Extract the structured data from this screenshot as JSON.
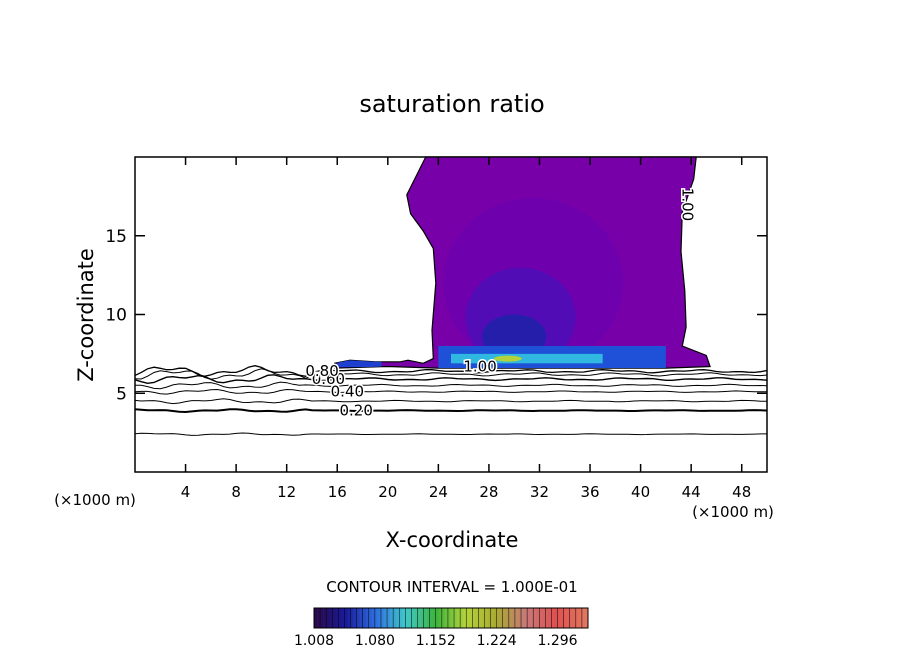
{
  "chart_data": {
    "type": "heatmap",
    "title": "saturation ratio",
    "xlabel": "X-coordinate",
    "ylabel": "Z-coordinate",
    "x_unit": "(×1000 m)",
    "xlim": [
      0,
      50
    ],
    "ylim": [
      0,
      20
    ],
    "x_ticks": [
      4,
      8,
      12,
      16,
      20,
      24,
      28,
      32,
      36,
      40,
      44,
      48
    ],
    "y_ticks": [
      5,
      10,
      15
    ],
    "contour_interval_label": "CONTOUR INTERVAL = 1.000E-01",
    "contour_labels": [
      {
        "text": "0.20",
        "x": 17.5,
        "z": 3.9
      },
      {
        "text": "0.40",
        "x": 16.8,
        "z": 5.1
      },
      {
        "text": "0.60",
        "x": 15.3,
        "z": 5.9
      },
      {
        "text": "0.80",
        "x": 14.8,
        "z": 6.4
      },
      {
        "text": "1.00",
        "x": 27.3,
        "z": 6.7
      },
      {
        "text": "1.00",
        "x": 43.3,
        "z": 17.3
      }
    ],
    "colorbar": {
      "min": 1.008,
      "max": 1.332,
      "tick_labels": [
        "1.008",
        "1.080",
        "1.152",
        "1.224",
        "1.296"
      ],
      "colors": [
        "#2a0a4a",
        "#1a1a9a",
        "#2f6fe0",
        "#40c8c8",
        "#3cb43c",
        "#b4d23c",
        "#aaaa32",
        "#c87878",
        "#e05050",
        "#e07860"
      ]
    },
    "supersaturated_region": {
      "x_range": [
        21.5,
        45.5
      ],
      "z_range": [
        6.6,
        20
      ],
      "base_color": "#7800a8"
    }
  }
}
